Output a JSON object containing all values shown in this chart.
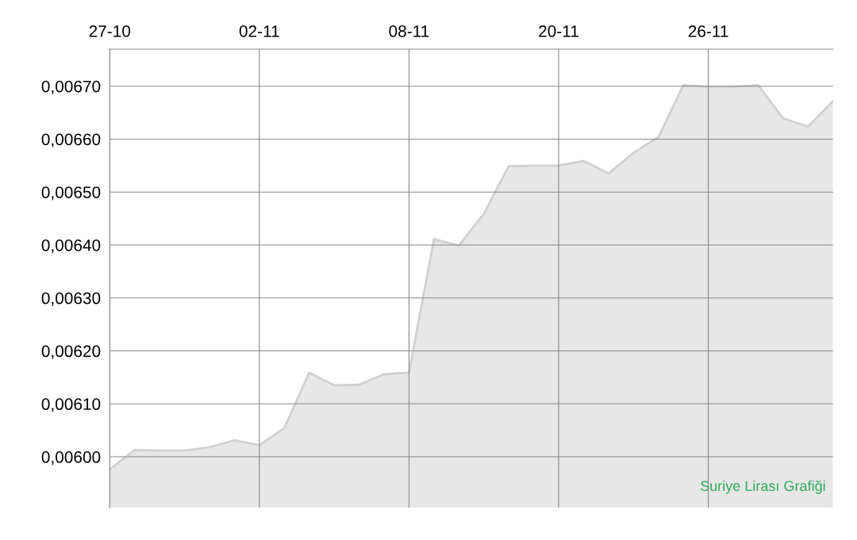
{
  "chart_data": {
    "type": "area",
    "categories": [
      "27-10",
      null,
      null,
      null,
      null,
      null,
      "02-11",
      null,
      null,
      null,
      null,
      null,
      "08-11",
      null,
      null,
      null,
      null,
      null,
      "20-11",
      null,
      null,
      null,
      null,
      null,
      "26-11",
      null,
      null,
      null,
      null,
      null
    ],
    "series": [
      {
        "color": "#d0d0d2",
        "values": [
          0.005976,
          0.006013,
          0.006012,
          0.006012,
          0.006018,
          0.006031,
          0.006022,
          0.006054,
          0.006159,
          0.006135,
          0.006136,
          0.006156,
          0.006159,
          0.006411,
          0.006399,
          0.006459,
          0.006549,
          0.00655,
          0.00655,
          0.006559,
          0.006535,
          0.006574,
          0.006604,
          0.006702,
          0.006699,
          0.006699,
          0.006702,
          0.006639,
          0.006624,
          0.006672
        ]
      }
    ],
    "ylim": [
      0.005904,
      0.00677
    ],
    "yticks": [
      {
        "value": 0.006,
        "label": "0,00600"
      },
      {
        "value": 0.0061,
        "label": "0,00610"
      },
      {
        "value": 0.0062,
        "label": "0,00620"
      },
      {
        "value": 0.0063,
        "label": "0,00630"
      },
      {
        "value": 0.0064,
        "label": "0,00640"
      },
      {
        "value": 0.0065,
        "label": "0,00650"
      },
      {
        "value": 0.0066,
        "label": "0,00660"
      },
      {
        "value": 0.0067,
        "label": "0,00670"
      }
    ],
    "grid": true,
    "annotations": [
      "Suriye Lirası Grafiği"
    ]
  }
}
